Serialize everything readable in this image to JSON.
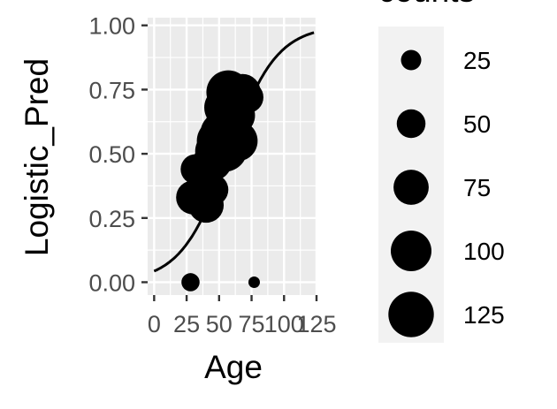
{
  "chart_data": {
    "type": "scatter",
    "title": "",
    "xlabel": "Age",
    "ylabel": "Logistic_Pred",
    "xlim": [
      -5,
      125
    ],
    "ylim": [
      -0.05,
      1.03
    ],
    "x_ticks": [
      0,
      25,
      50,
      75,
      100,
      125
    ],
    "x_tick_labels": [
      "0",
      "25",
      "50",
      "75",
      "100",
      "125"
    ],
    "y_ticks": [
      0.0,
      0.25,
      0.5,
      0.75,
      1.0
    ],
    "y_tick_labels": [
      "0.00",
      "0.25",
      "0.50",
      "0.75",
      "1.00"
    ],
    "grid": true,
    "panel_background": "#ebebeb",
    "point_color": "#000000",
    "legend": {
      "title": "counts",
      "position": "right",
      "sizes": [
        25,
        50,
        75,
        100,
        125
      ],
      "labels": [
        "25",
        "50",
        "75",
        "100",
        "125"
      ]
    },
    "fitted_curve": {
      "model": "logistic",
      "intercept": -3.1,
      "slope": 0.054,
      "x_range": [
        0,
        123
      ]
    },
    "points": [
      {
        "x": 28,
        "y": 0.0,
        "count": 20
      },
      {
        "x": 77,
        "y": 0.0,
        "count": 8
      },
      {
        "x": 32,
        "y": 0.44,
        "count": 55
      },
      {
        "x": 30,
        "y": 0.33,
        "count": 70
      },
      {
        "x": 40,
        "y": 0.3,
        "count": 75
      },
      {
        "x": 39,
        "y": 0.37,
        "count": 80
      },
      {
        "x": 45,
        "y": 0.36,
        "count": 60
      },
      {
        "x": 40,
        "y": 0.44,
        "count": 75
      },
      {
        "x": 45,
        "y": 0.47,
        "count": 90
      },
      {
        "x": 48,
        "y": 0.51,
        "count": 110
      },
      {
        "x": 50,
        "y": 0.55,
        "count": 120
      },
      {
        "x": 52,
        "y": 0.58,
        "count": 110
      },
      {
        "x": 54,
        "y": 0.52,
        "count": 130
      },
      {
        "x": 56,
        "y": 0.6,
        "count": 125
      },
      {
        "x": 58,
        "y": 0.63,
        "count": 110
      },
      {
        "x": 60,
        "y": 0.55,
        "count": 120
      },
      {
        "x": 62,
        "y": 0.65,
        "count": 100
      },
      {
        "x": 64,
        "y": 0.55,
        "count": 100
      },
      {
        "x": 55,
        "y": 0.68,
        "count": 110
      },
      {
        "x": 60,
        "y": 0.73,
        "count": 120
      },
      {
        "x": 57,
        "y": 0.74,
        "count": 115
      },
      {
        "x": 63,
        "y": 0.7,
        "count": 95
      },
      {
        "x": 68,
        "y": 0.74,
        "count": 80
      },
      {
        "x": 72,
        "y": 0.72,
        "count": 60
      }
    ]
  }
}
